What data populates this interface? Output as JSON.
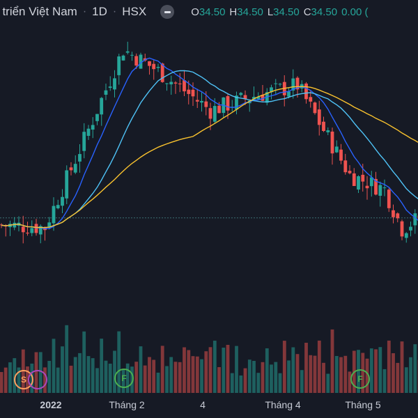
{
  "header": {
    "title": "t triển Việt Nam",
    "interval": "1D",
    "exchange": "HSX",
    "ohlc": [
      {
        "key": "O",
        "value": "34.50"
      },
      {
        "key": "H",
        "value": "34.50"
      },
      {
        "key": "L",
        "value": "34.50"
      },
      {
        "key": "C",
        "value": "34.50"
      }
    ],
    "change": "0.00 ("
  },
  "x_axis_labels": [
    {
      "text": "2022",
      "bold": true
    },
    {
      "text": "Tháng 2",
      "bold": false
    },
    {
      "text": "4",
      "bold": false
    },
    {
      "text": "Tháng 4",
      "bold": false
    },
    {
      "text": "Tháng 5",
      "bold": false
    }
  ],
  "events": [
    {
      "letter": "S",
      "color": "#ff9e5e"
    },
    {
      "letter": "",
      "color": "#ab47bc"
    },
    {
      "letter": "F",
      "color": "#4caf50"
    },
    {
      "letter": "F",
      "color": "#4caf50"
    }
  ],
  "colors": {
    "background": "#161a25",
    "up": "#26a69a",
    "down": "#ef5350",
    "ma_short": "#2962ff",
    "ma_mid": "#4fc3f7",
    "ma_long": "#f9c22e",
    "last_price_line": "#3b6e75"
  },
  "chart_data": {
    "type": "candlestick",
    "bars_shown": 97,
    "price_line": 34.5,
    "series": [
      {
        "name": "price",
        "trend": [
          {
            "bar": 0,
            "price": 33.5
          },
          {
            "bar": 10,
            "price": 33.2
          },
          {
            "bar": 18,
            "price": 44.0
          },
          {
            "bar": 28,
            "price": 58.0
          },
          {
            "bar": 36,
            "price": 55.0
          },
          {
            "bar": 48,
            "price": 49.5
          },
          {
            "bar": 58,
            "price": 51.5
          },
          {
            "bar": 68,
            "price": 53.0
          },
          {
            "bar": 80,
            "price": 40.5
          },
          {
            "bar": 88,
            "price": 38.5
          },
          {
            "bar": 92,
            "price": 33.0
          },
          {
            "bar": 96,
            "price": 34.5
          }
        ]
      }
    ]
  }
}
